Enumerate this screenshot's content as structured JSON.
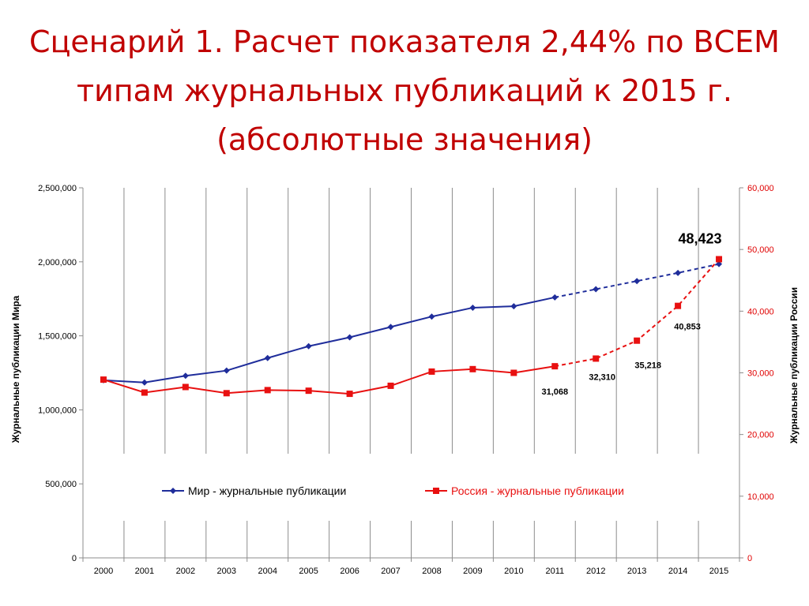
{
  "slide": {
    "title": "Сценарий 1. Расчет показателя 2,44% по ВСЕМ типам журнальных публикаций к 2015 г. (абсолютные значения)"
  },
  "chart_data": {
    "type": "line",
    "categories": [
      "2000",
      "2001",
      "2002",
      "2003",
      "2004",
      "2005",
      "2006",
      "2007",
      "2008",
      "2009",
      "2010",
      "2011",
      "2012",
      "2013",
      "2014",
      "2015"
    ],
    "y_left": {
      "label": "Журнальные публикации Мира",
      "range": [
        0,
        2500000
      ],
      "ticks": [
        0,
        500000,
        1000000,
        1500000,
        2000000,
        2500000
      ],
      "tick_labels": [
        "0",
        "500,000",
        "1,000,000",
        "1,500,000",
        "2,000,000",
        "2,500,000"
      ]
    },
    "y_right": {
      "label": "Журнальные публикации России",
      "range": [
        0,
        60000
      ],
      "ticks": [
        0,
        10000,
        20000,
        30000,
        40000,
        50000,
        60000
      ],
      "tick_labels": [
        "0",
        "10,000",
        "20,000",
        "30,000",
        "40,000",
        "50,000",
        "60,000"
      ]
    },
    "series": [
      {
        "name": "Мир - журнальные публикации",
        "axis": "left",
        "color": "#1f2d9b",
        "marker": "diamond",
        "values": [
          1200000,
          1185000,
          1230000,
          1265000,
          1350000,
          1430000,
          1490000,
          1560000,
          1630000,
          1690000,
          1700000,
          1760000,
          1815000,
          1870000,
          1925000,
          1985000
        ],
        "dashed_from_index": 11
      },
      {
        "name": "Россия - журнальные публикации",
        "axis": "right",
        "color": "#e81010",
        "marker": "square",
        "values": [
          28900,
          26800,
          27700,
          26700,
          27200,
          27100,
          26600,
          27900,
          30200,
          30600,
          30000,
          31068,
          32310,
          35218,
          40853,
          48423
        ],
        "dashed_from_index": 11
      }
    ],
    "data_labels": [
      {
        "index": 11,
        "text": "31,068",
        "style": "normal"
      },
      {
        "index": 12,
        "text": "32,310",
        "style": "normal"
      },
      {
        "index": 13,
        "text": "35,218",
        "style": "normal"
      },
      {
        "index": 14,
        "text": "40,853",
        "style": "normal"
      },
      {
        "index": 15,
        "text": "48,423",
        "style": "big"
      }
    ],
    "legend": {
      "placement": "inside-bottom"
    },
    "grid": {
      "vertical": true,
      "horizontal": false
    }
  }
}
